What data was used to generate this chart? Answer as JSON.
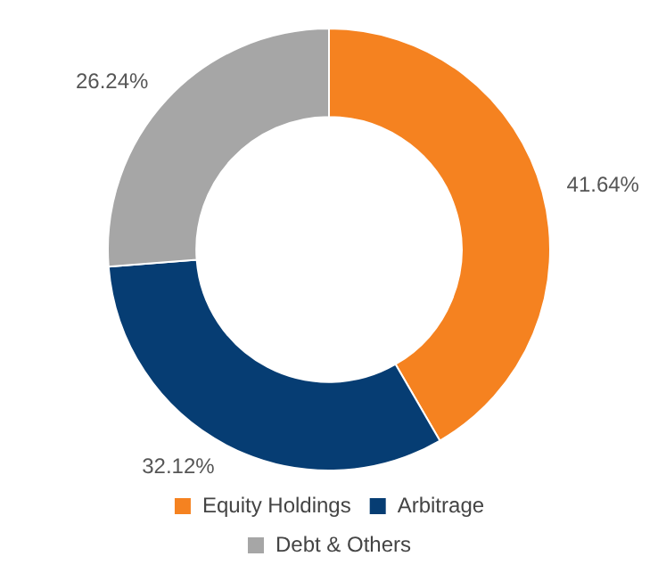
{
  "chart_data": {
    "type": "donut",
    "categories": [
      "Equity Holdings",
      "Arbitrage",
      "Debt & Others"
    ],
    "values": [
      41.64,
      32.12,
      26.24
    ],
    "colors": [
      "#f58220",
      "#063d73",
      "#a6a6a6"
    ],
    "value_labels": [
      "41.64%",
      "32.12%",
      "26.24%"
    ],
    "legend": "bottom"
  }
}
